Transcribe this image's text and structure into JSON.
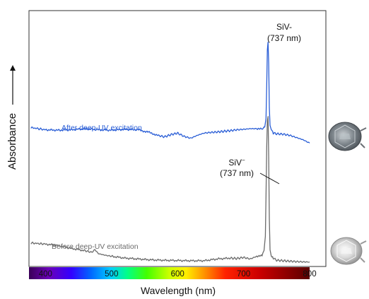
{
  "chart_data": {
    "type": "line",
    "xlabel": "Wavelength (nm)",
    "ylabel": "Absorbance",
    "xlim": [
      375,
      800
    ],
    "x_ticks": [
      "400",
      "500",
      "600",
      "700",
      "800"
    ],
    "x_tick_values": [
      400,
      500,
      600,
      700,
      800
    ],
    "y_scale": "arbitrary (no tick values shown)",
    "grid": false,
    "legend": "none (series labeled inline)",
    "colorbar": "visible spectrum band from violet to dark red along the x axis",
    "series": [
      {
        "name": "After deep-UV excitation",
        "color": "#2a5ed6",
        "x": [
          378,
          400,
          420,
          440,
          460,
          480,
          500,
          520,
          540,
          555,
          570,
          580,
          590,
          600,
          610,
          620,
          630,
          640,
          650,
          660,
          670,
          680,
          690,
          700,
          710,
          720,
          728,
          732,
          734,
          735,
          736,
          737,
          738,
          739,
          740,
          742,
          745,
          750,
          760,
          770,
          780,
          790,
          800
        ],
        "y": [
          0.61,
          0.6,
          0.598,
          0.6,
          0.605,
          0.6,
          0.598,
          0.602,
          0.6,
          0.59,
          0.575,
          0.568,
          0.578,
          0.585,
          0.57,
          0.562,
          0.575,
          0.585,
          0.588,
          0.59,
          0.593,
          0.596,
          0.6,
          0.602,
          0.605,
          0.605,
          0.603,
          0.612,
          0.65,
          0.8,
          0.96,
          0.995,
          0.9,
          0.7,
          0.62,
          0.6,
          0.585,
          0.582,
          0.58,
          0.575,
          0.565,
          0.555,
          0.54
        ]
      },
      {
        "name": "Before deep-UV excitation",
        "color": "#6b6b6b",
        "x": [
          378,
          400,
          420,
          440,
          460,
          470,
          475,
          480,
          490,
          500,
          520,
          540,
          560,
          580,
          600,
          620,
          640,
          660,
          680,
          690,
          700,
          710,
          720,
          728,
          731,
          733,
          734,
          735,
          736,
          737,
          738,
          739,
          740,
          742,
          745,
          750,
          760,
          770,
          780,
          790,
          800
        ],
        "y": [
          0.09,
          0.085,
          0.078,
          0.065,
          0.055,
          0.048,
          0.06,
          0.042,
          0.035,
          0.03,
          0.022,
          0.018,
          0.014,
          0.012,
          0.011,
          0.01,
          0.01,
          0.018,
          0.022,
          0.02,
          0.025,
          0.018,
          0.03,
          0.032,
          0.06,
          0.12,
          0.3,
          0.52,
          0.64,
          0.66,
          0.48,
          0.2,
          0.06,
          0.03,
          0.022,
          0.012,
          0.01,
          0.008,
          0.006,
          0.005,
          0.004
        ]
      }
    ],
    "annotations": [
      {
        "line1": "SiV-",
        "line2": "(737 nm)"
      },
      {
        "line1": "SiV",
        "sup": "−",
        "line2": "(737 nm)"
      }
    ],
    "inline_labels": {
      "after": "After deep-UV excitation",
      "before": "Before deep-UV excitation"
    },
    "pictures": [
      "diamond-before-excitation-photo",
      "diamond-after-excitation-photo"
    ]
  }
}
